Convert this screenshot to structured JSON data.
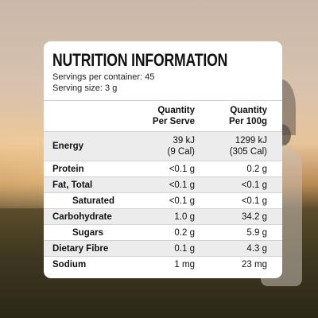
{
  "panel": {
    "title": "NUTRITION INFORMATION",
    "servings_per_container": "Servings per container: 45",
    "serving_size": "Serving size: 3 g"
  },
  "columns": {
    "per_serve": [
      "Quantity",
      "Per Serve"
    ],
    "per_100g": [
      "Quantity",
      "Per 100g"
    ]
  },
  "rows": [
    {
      "label": "Energy",
      "per_serve": [
        "39 kJ",
        "(9 Cal)"
      ],
      "per_100g": [
        "1299 kJ",
        "(305 Cal)"
      ]
    },
    {
      "label": "Protein",
      "per_serve": "<0.1 g",
      "per_100g": "0.2 g"
    },
    {
      "label": "Fat, Total",
      "per_serve": "<0.1 g",
      "per_100g": "<0.1 g"
    },
    {
      "label": "Saturated",
      "per_serve": "<0.1 g",
      "per_100g": "<0.1 g"
    },
    {
      "label": "Carbohydrate",
      "per_serve": "1.0 g",
      "per_100g": "34.2 g"
    },
    {
      "label": "Sugars",
      "per_serve": "0.2 g",
      "per_100g": "5.9 g"
    },
    {
      "label": "Dietary Fibre",
      "per_serve": "0.1 g",
      "per_100g": "4.3 g"
    },
    {
      "label": "Sodium",
      "per_serve": "1 mg",
      "per_100g": "23 mg"
    }
  ]
}
